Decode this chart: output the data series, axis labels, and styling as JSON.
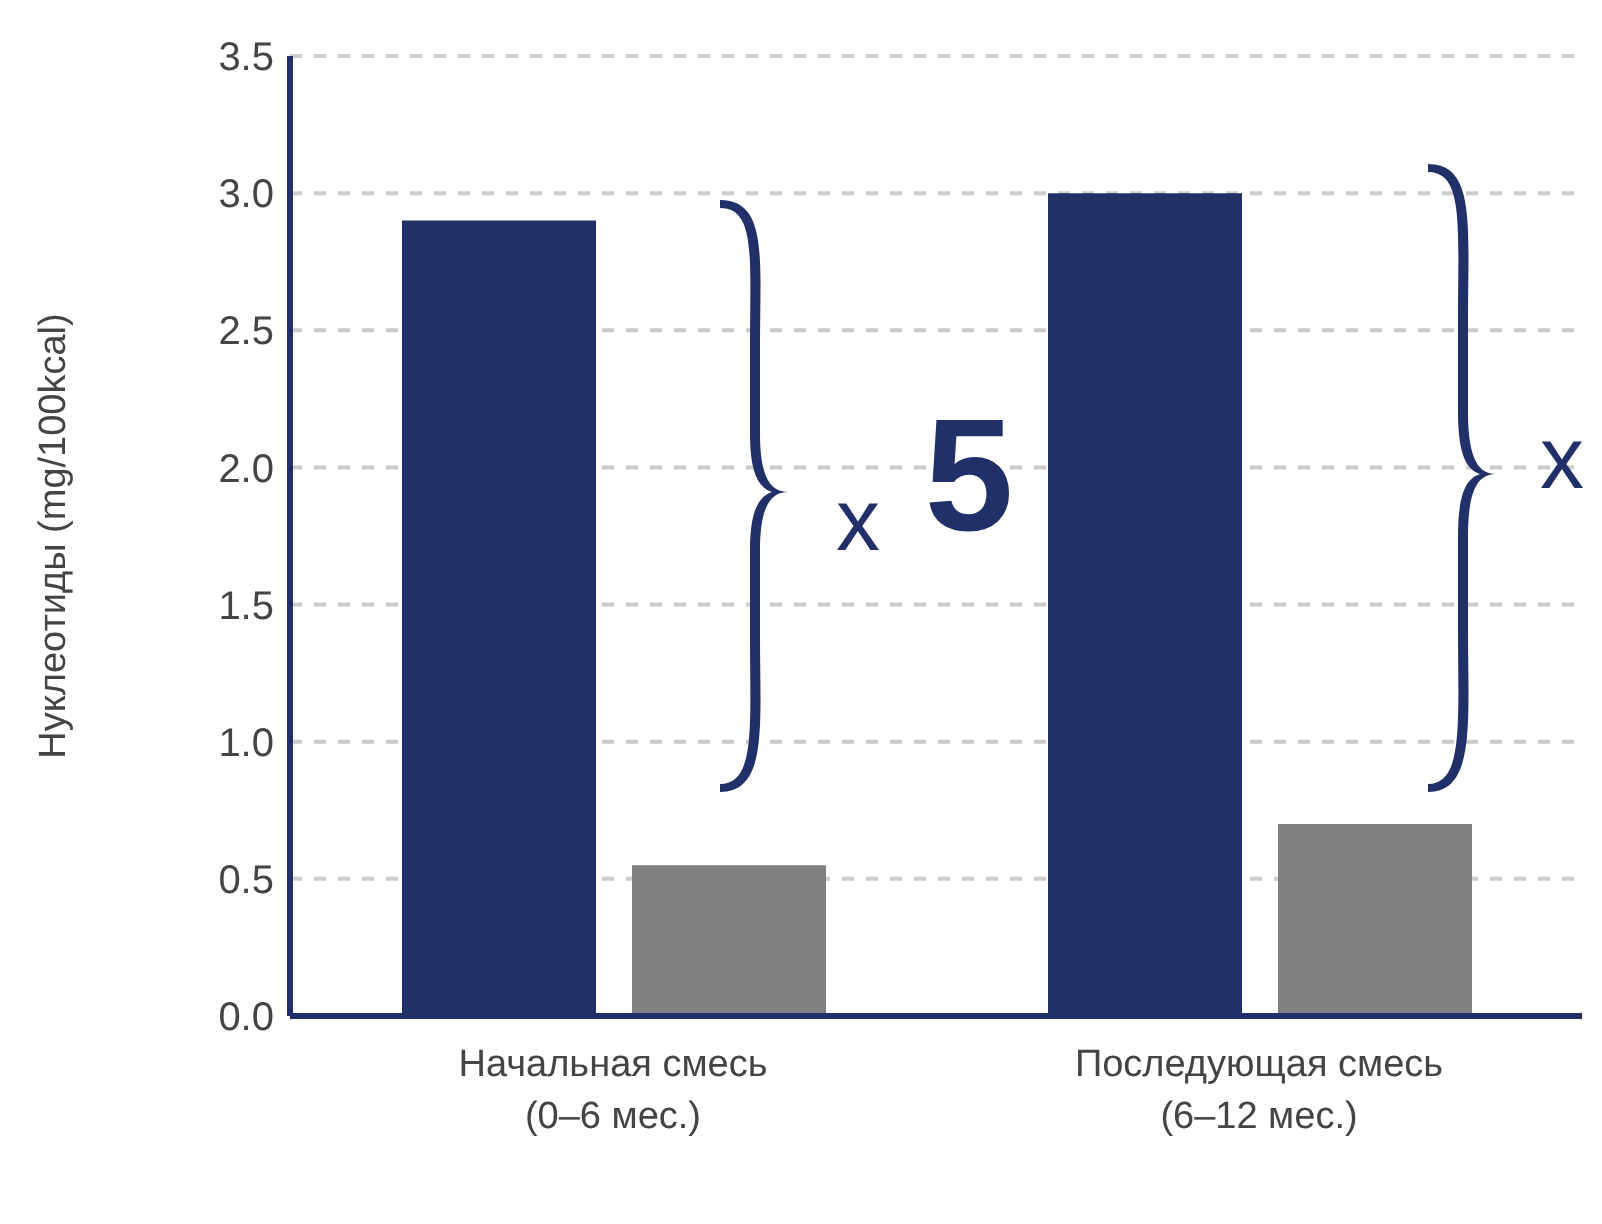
{
  "chart_data": {
    "type": "bar",
    "ylabel": "Нуклеотиды (mg/100kcal)",
    "categories": [
      "Начальная смесь\n(0–6 мес.)",
      "Последующая смесь\n(6–12 мес.)"
    ],
    "series": [
      {
        "color": "#22306a",
        "values": [
          2.9,
          3.0
        ]
      },
      {
        "color": "#808080",
        "values": [
          0.55,
          0.7
        ]
      }
    ],
    "ylim": [
      0,
      3.5
    ],
    "yticks": [
      {
        "value": 0,
        "label": "0.0"
      },
      0.5,
      {
        "value": 1,
        "label": "1.0"
      },
      1.5,
      {
        "value": 2,
        "label": "2.0"
      },
      2.5,
      {
        "value": 3,
        "label": "3.0"
      },
      3.5
    ],
    "grid": "y",
    "legend": false,
    "annotations": [
      "x 5",
      "x"
    ]
  }
}
